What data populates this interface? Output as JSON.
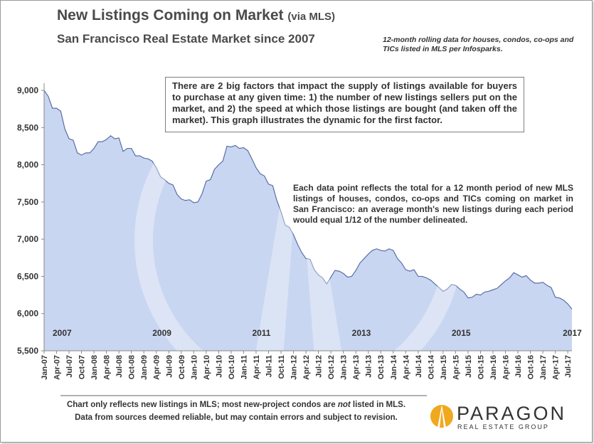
{
  "header": {
    "title": "New Listings Coming on Market",
    "title_suffix": "(via MLS)",
    "subtitle": "San Francisco Real Estate Market since 2007",
    "note": "12-month rolling data for houses, condos, co-ops and TICs listed in MLS per Infosparks."
  },
  "annotations": {
    "box": "There are 2 big factors that impact the supply of listings available for buyers to purchase at any given time: 1) the number of new listings sellers put on the market, and 2) the speed at which those listings are bought (and taken off the market). This graph illustrates the dynamic for the first factor.",
    "explain": "Each data point reflects the total for a 12 month period of new MLS listings of houses, condos, co-ops and TICs coming on market in San Francisco: an average month's new listings during each period would equal 1/12 of the number delineated."
  },
  "footer": {
    "line1_a": "Chart only reflects new listings in MLS; most new-project condos are ",
    "line1_em": "not",
    "line1_b": " listed in MLS.",
    "line2": "Data from sources deemed reliable, but may contain errors and subject to revision."
  },
  "logo": {
    "name": "PARAGON",
    "tagline": "REAL ESTATE GROUP"
  },
  "colors": {
    "fill": "#c9d6f1",
    "line": "#5a6fa6",
    "accent": "#f0a81e"
  },
  "chart_data": {
    "type": "area",
    "ylim": [
      5500,
      9000
    ],
    "yticks": [
      9000,
      8500,
      8000,
      7500,
      7000,
      6500,
      6000,
      5500
    ],
    "ytick_labels": [
      "9,000",
      "8,500",
      "8,000",
      "7,500",
      "7,000",
      "6,500",
      "6,000",
      "5,500"
    ],
    "start": "Jan-07",
    "xtick_labels": [
      "Jan-07",
      "Apr-07",
      "Jul-07",
      "Oct-07",
      "Jan-08",
      "Apr-08",
      "Jul-08",
      "Oct-08",
      "Jan-09",
      "Apr-09",
      "Jul-09",
      "Oct-09",
      "Jan-10",
      "Apr-10",
      "Jul-10",
      "Oct-10",
      "Jan-11",
      "Apr-11",
      "Jul-11",
      "Oct-11",
      "Jan-12",
      "Apr-12",
      "Jul-12",
      "Oct-12",
      "Jan-13",
      "Apr-13",
      "Jul-13",
      "Oct-13",
      "Jan-14",
      "Apr-14",
      "Jul-14",
      "Oct-14",
      "Jan-15",
      "Apr-15",
      "Jul-15",
      "Oct-15",
      "Jan-16",
      "Apr-16",
      "Jul-16",
      "Oct-16",
      "Jan-17",
      "Apr-17",
      "Jul-17"
    ],
    "year_labels": [
      {
        "label": "2007",
        "month": 0
      },
      {
        "label": "2009",
        "month": 24
      },
      {
        "label": "2011",
        "month": 48
      },
      {
        "label": "2013",
        "month": 72
      },
      {
        "label": "2015",
        "month": 96
      },
      {
        "label": "2017",
        "month": 120
      }
    ],
    "values": [
      9000,
      8920,
      8760,
      8760,
      8720,
      8480,
      8350,
      8330,
      8160,
      8130,
      8160,
      8160,
      8220,
      8310,
      8310,
      8340,
      8390,
      8350,
      8360,
      8180,
      8220,
      8220,
      8120,
      8120,
      8090,
      8080,
      8050,
      7960,
      7840,
      7800,
      7750,
      7730,
      7600,
      7540,
      7520,
      7530,
      7490,
      7500,
      7610,
      7780,
      7800,
      7940,
      8000,
      8050,
      8250,
      8240,
      8260,
      8220,
      8230,
      8190,
      8080,
      7960,
      7880,
      7850,
      7740,
      7720,
      7520,
      7370,
      7190,
      7160,
      7060,
      6930,
      6820,
      6740,
      6730,
      6590,
      6520,
      6480,
      6400,
      6490,
      6580,
      6570,
      6540,
      6490,
      6500,
      6580,
      6680,
      6740,
      6800,
      6850,
      6870,
      6850,
      6840,
      6870,
      6850,
      6740,
      6680,
      6590,
      6570,
      6590,
      6500,
      6500,
      6480,
      6450,
      6400,
      6350,
      6300,
      6330,
      6390,
      6380,
      6330,
      6290,
      6210,
      6220,
      6260,
      6250,
      6290,
      6300,
      6320,
      6340,
      6390,
      6440,
      6480,
      6550,
      6520,
      6490,
      6510,
      6450,
      6410,
      6410,
      6420,
      6380,
      6350,
      6220,
      6210,
      6180,
      6130,
      6060
    ]
  }
}
